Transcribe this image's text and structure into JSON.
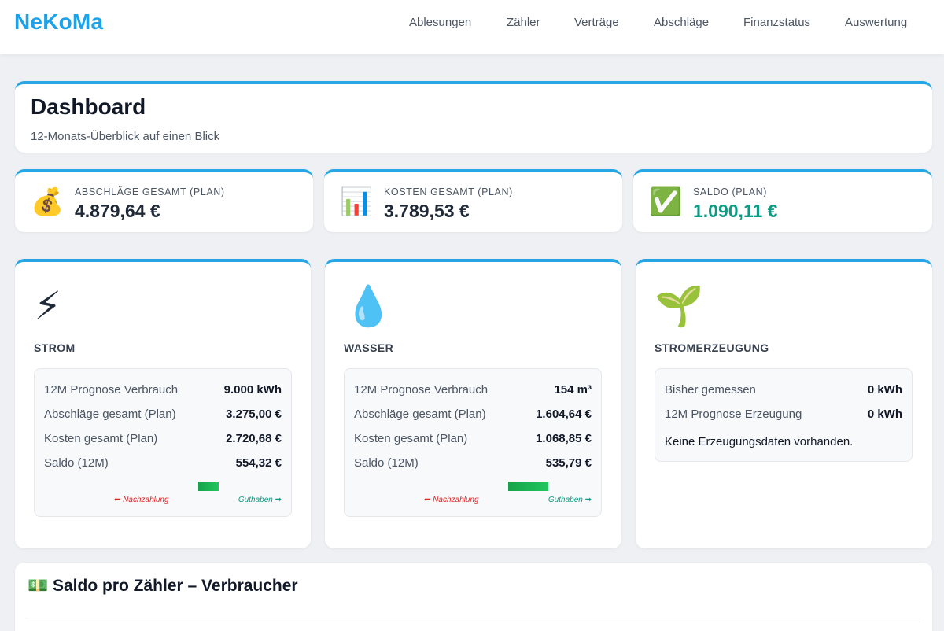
{
  "header": {
    "brand": "NeKoMa",
    "nav": [
      "Ablesungen",
      "Zähler",
      "Verträge",
      "Abschläge",
      "Finanzstatus",
      "Auswertung"
    ]
  },
  "dashboard": {
    "title": "Dashboard",
    "subtitle": "12-Monats-Überblick auf einen Blick"
  },
  "kpis": [
    {
      "icon": "money-bag-icon",
      "glyph": "💰",
      "label": "Abschläge gesamt (Plan)",
      "value": "4.879,64 €"
    },
    {
      "icon": "bar-chart-icon",
      "glyph": "📊",
      "label": "Kosten gesamt (Plan)",
      "value": "3.789,53 €"
    },
    {
      "icon": "check-mark-icon",
      "glyph": "✅",
      "label": "Saldo (Plan)",
      "value": "1.090,11 €"
    }
  ],
  "services": [
    {
      "icon": "lightning-icon",
      "glyph": "⚡",
      "title": "STROM",
      "rows": [
        {
          "label": "12M Prognose Verbrauch",
          "value": "9.000 kWh"
        },
        {
          "label": "Abschläge gesamt (Plan)",
          "value": "3.275,00 €"
        },
        {
          "label": "Kosten gesamt (Plan)",
          "value": "2.720,68 €"
        },
        {
          "label": "Saldo (12M)",
          "value": "554,32 €"
        }
      ],
      "balance_bar_fraction": 0.24,
      "legend_left": "⬅ Nachzahlung",
      "legend_right": "Guthaben ➡"
    },
    {
      "icon": "water-drop-icon",
      "glyph": "💧",
      "title": "WASSER",
      "rows": [
        {
          "label": "12M Prognose Verbrauch",
          "value": "154 m³"
        },
        {
          "label": "Abschläge gesamt (Plan)",
          "value": "1.604,64 €"
        },
        {
          "label": "Kosten gesamt (Plan)",
          "value": "1.068,85 €"
        },
        {
          "label": "Saldo (12M)",
          "value": "535,79 €"
        }
      ],
      "balance_bar_fraction": 0.47,
      "legend_left": "⬅ Nachzahlung",
      "legend_right": "Guthaben ➡"
    },
    {
      "icon": "seedling-icon",
      "glyph": "🌱",
      "title": "STROMERZEUGUNG",
      "rows": [
        {
          "label": "Bisher gemessen",
          "value": "0 kWh"
        },
        {
          "label": "12M Prognose Erzeugung",
          "value": "0 kWh"
        }
      ],
      "note": "Keine Erzeugungsdaten vorhanden."
    }
  ],
  "section": {
    "icon": "banknote-icon",
    "glyph": "💵",
    "title": "Saldo pro Zähler – Verbraucher"
  },
  "colors": {
    "brand": "#1da1e8",
    "accent_border": "#27a6e6",
    "positive": "#0f9a84",
    "negative": "#dc2626",
    "bar": "#22c55e"
  }
}
